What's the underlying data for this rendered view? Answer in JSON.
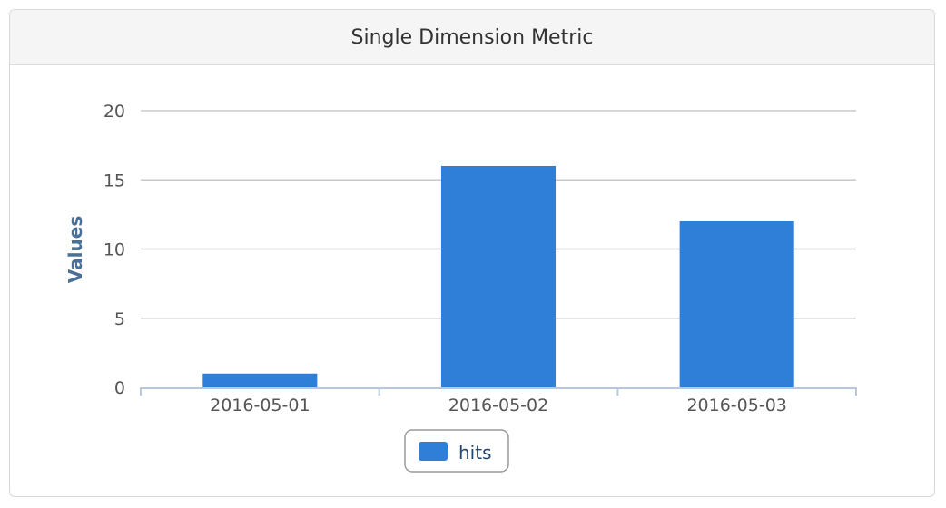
{
  "panel": {
    "title": "Single Dimension Metric"
  },
  "chart_data": {
    "type": "bar",
    "title": "Single Dimension Metric",
    "categories": [
      "2016-05-01",
      "2016-05-02",
      "2016-05-03"
    ],
    "series": [
      {
        "name": "hits",
        "values": [
          1,
          16,
          12
        ],
        "color": "#2f7ed8"
      }
    ],
    "xlabel": "",
    "ylabel": "Values",
    "ylim": [
      0,
      20
    ],
    "yticks": [
      0,
      5,
      10,
      15,
      20
    ],
    "grid": true,
    "legend": "bottom-center"
  }
}
